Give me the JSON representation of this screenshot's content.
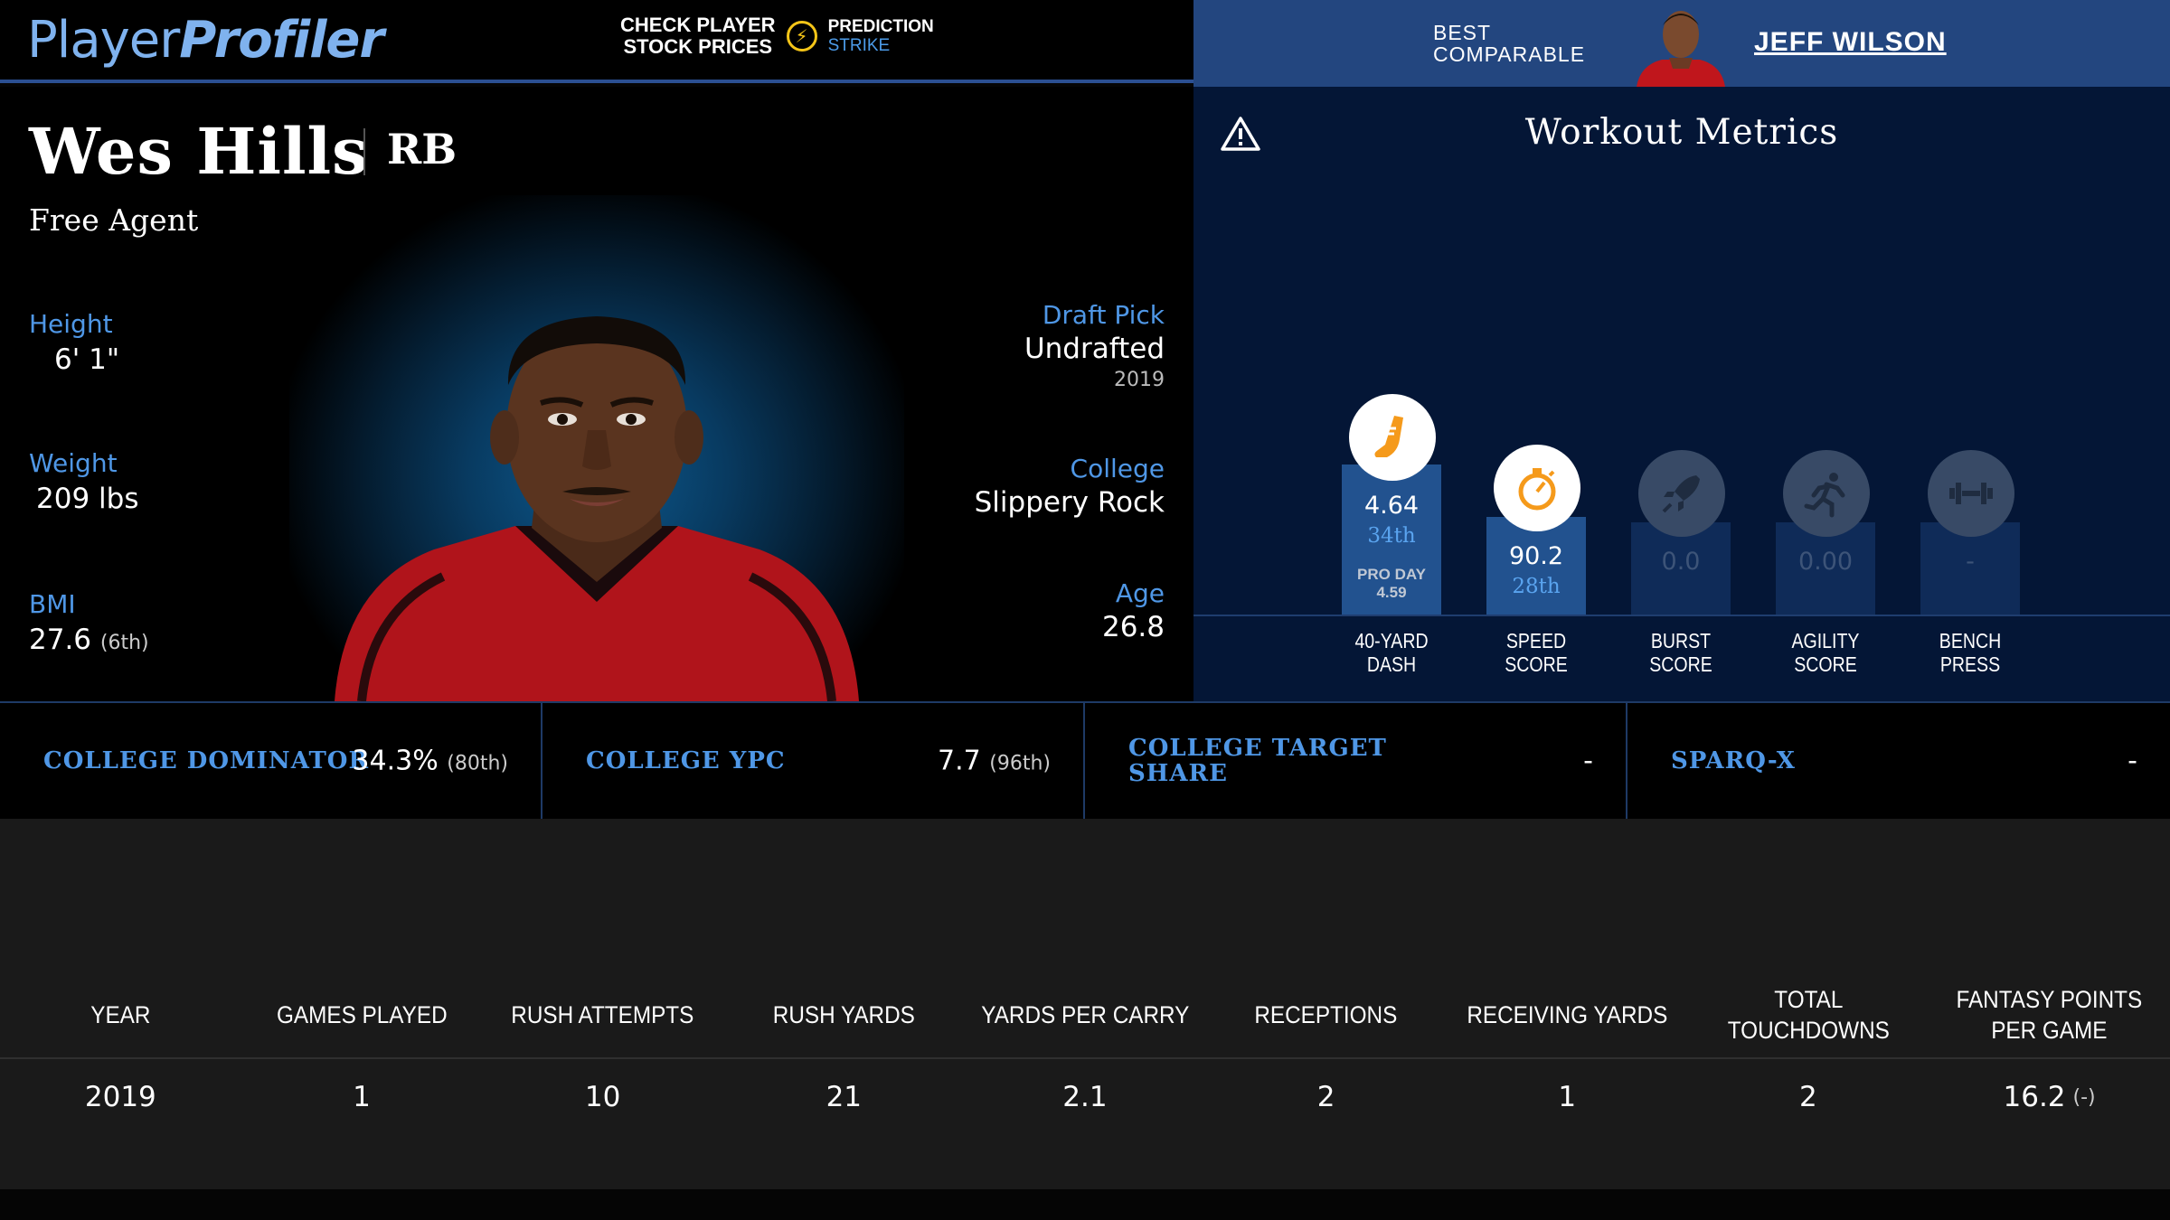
{
  "header": {
    "logo_part1": "Player",
    "logo_part2": "Profiler",
    "promo_line1": "CHECK PLAYER",
    "promo_line2": "STOCK PRICES",
    "promo_brand1": "PREDICTION",
    "promo_brand2": "STRIKE"
  },
  "comparable": {
    "label_line1": "BEST",
    "label_line2": "COMPARABLE",
    "name": "JEFF WILSON"
  },
  "player": {
    "name": "Wes Hills",
    "position": "RB",
    "team": "Free Agent",
    "height_label": "Height",
    "height": "6' 1\"",
    "weight_label": "Weight",
    "weight": "209 lbs",
    "bmi_label": "BMI",
    "bmi": "27.6",
    "bmi_rank": "(6th)",
    "draft_label": "Draft Pick",
    "draft": "Undrafted",
    "draft_year": "2019",
    "college_label": "College",
    "college": "Slippery Rock",
    "age_label": "Age",
    "age": "26.8"
  },
  "workout": {
    "title": "Workout Metrics",
    "metrics": [
      {
        "label1": "40-YARD",
        "label2": "DASH",
        "value": "4.64",
        "rank": "34th",
        "percentile": 34,
        "pro_day_label": "PRO DAY",
        "pro_day_value": "4.59",
        "icon": "shoe-icon",
        "active": true
      },
      {
        "label1": "SPEED",
        "label2": "SCORE",
        "value": "90.2",
        "rank": "28th",
        "percentile": 28,
        "icon": "stopwatch-icon",
        "active": true
      },
      {
        "label1": "BURST",
        "label2": "SCORE",
        "value": "0.0",
        "rank": "",
        "percentile": 0,
        "icon": "rocket-icon",
        "active": false
      },
      {
        "label1": "AGILITY",
        "label2": "SCORE",
        "value": "0.00",
        "rank": "",
        "percentile": 0,
        "icon": "runner-icon",
        "active": false
      },
      {
        "label1": "BENCH",
        "label2": "PRESS",
        "value": "-",
        "rank": "",
        "percentile": 0,
        "icon": "dumbbell-icon",
        "active": false
      }
    ]
  },
  "stats_strip": [
    {
      "label": "COLLEGE DOMINATOR",
      "value": "34.3%",
      "rank": "(80th)"
    },
    {
      "label": "COLLEGE YPC",
      "value": "7.7",
      "rank": "(96th)"
    },
    {
      "label": "COLLEGE TARGET SHARE",
      "value": "-",
      "rank": ""
    },
    {
      "label": "SPARQ-X",
      "value": "-",
      "rank": ""
    }
  ],
  "table": {
    "headers": [
      "YEAR",
      "GAMES PLAYED",
      "RUSH ATTEMPTS",
      "RUSH YARDS",
      "YARDS PER CARRY",
      "RECEPTIONS",
      "RECEIVING YARDS",
      "TOTAL TOUCHDOWNS",
      "FANTASY POINTS PER GAME"
    ],
    "rows": [
      [
        "2019",
        "1",
        "10",
        "21",
        "2.1",
        "2",
        "1",
        "2",
        "16.2"
      ]
    ],
    "fantasy_rank": "(-)"
  },
  "colors": {
    "accent_blue": "#4f97e6",
    "header_blue": "#23467f",
    "badge_orange": "#f59a1b"
  }
}
